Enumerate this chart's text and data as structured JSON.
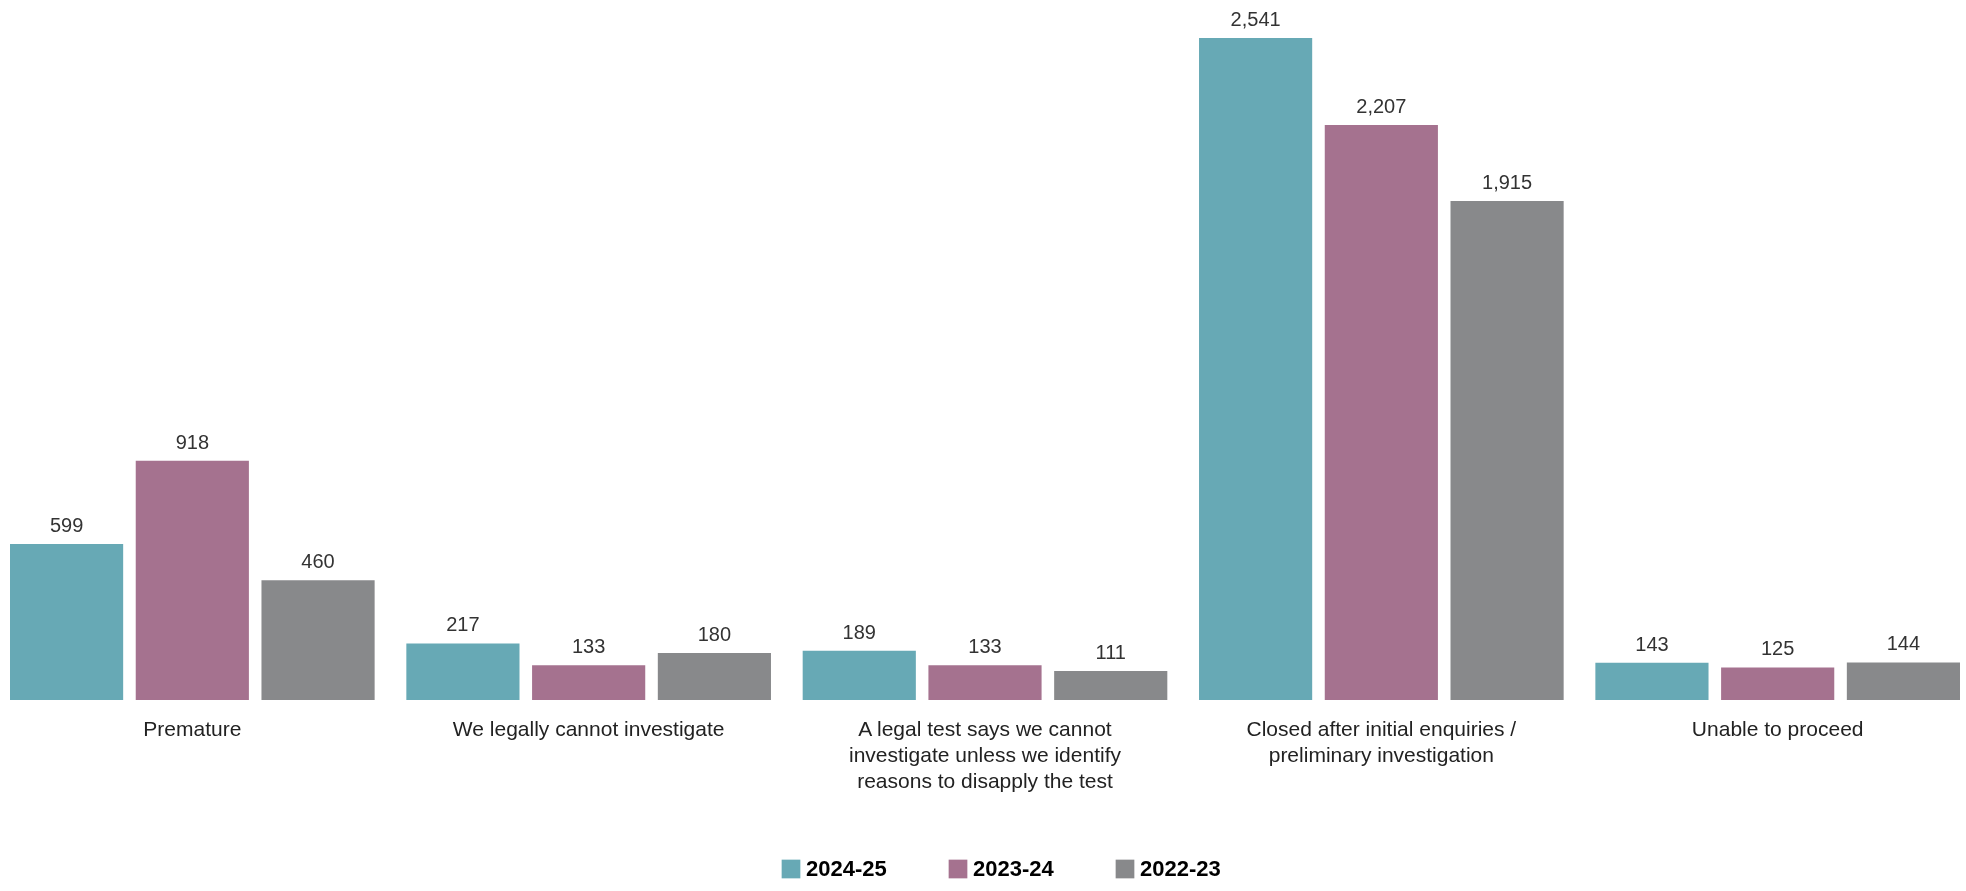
{
  "chart_data": {
    "type": "bar",
    "categories": [
      "Premature",
      "We legally cannot investigate",
      "A legal test says we cannot investigate unless we identify reasons to disapply the test",
      "Closed after initial enquiries / preliminary investigation",
      "Unable to proceed"
    ],
    "series": [
      {
        "name": "2024-25",
        "color": "#67a9b5",
        "values": [
          599,
          217,
          189,
          2541,
          143
        ],
        "value_labels": [
          "599",
          "217",
          "189",
          "2,541",
          "143"
        ]
      },
      {
        "name": "2023-24",
        "color": "#a5728f",
        "values": [
          918,
          133,
          133,
          2207,
          125
        ],
        "value_labels": [
          "918",
          "133",
          "133",
          "2,207",
          "125"
        ]
      },
      {
        "name": "2022-23",
        "color": "#88898b",
        "values": [
          460,
          180,
          111,
          1915,
          144
        ],
        "value_labels": [
          "460",
          "180",
          "111",
          "1,915",
          "144"
        ]
      }
    ],
    "grid": false,
    "legend": "bottom"
  }
}
